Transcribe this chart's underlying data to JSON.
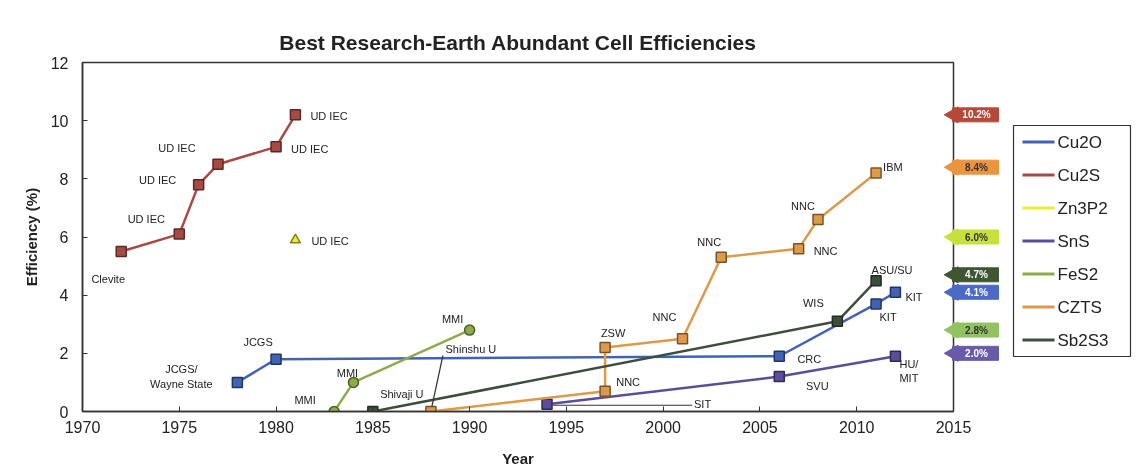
{
  "chart_data": {
    "type": "line",
    "title": "Best Research-Earth Abundant Cell Efficiencies",
    "xlabel": "Year",
    "ylabel": "Efficiency (%)",
    "xlim": [
      1970,
      2015
    ],
    "ylim": [
      0,
      12
    ],
    "xticks": [
      1970,
      1975,
      1980,
      1985,
      1990,
      1995,
      2000,
      2005,
      2010,
      2015
    ],
    "yticks": [
      0,
      2,
      4,
      6,
      8,
      10,
      12
    ],
    "grid": false,
    "legend": "right",
    "line_style": "solid",
    "series": [
      {
        "name": "Cu2O",
        "color": "#4262b4",
        "marker": "square",
        "x": [
          1978,
          1980,
          2006,
          2011,
          2012
        ],
        "values": [
          1.0,
          1.8,
          1.9,
          3.7,
          4.1
        ]
      },
      {
        "name": "Cu2S",
        "color": "#a84a44",
        "marker": "square",
        "x": [
          1972,
          1975,
          1976,
          1977,
          1980,
          1981
        ],
        "values": [
          5.5,
          6.1,
          7.8,
          8.5,
          9.1,
          10.2
        ]
      },
      {
        "name": "Zn3P2",
        "color": "#ecec30",
        "marker": "triangle",
        "x": [
          1981
        ],
        "values": [
          5.9
        ]
      },
      {
        "name": "SnS",
        "color": "#5c4c9c",
        "marker": "square",
        "x": [
          1994,
          2006,
          2012
        ],
        "values": [
          0.25,
          1.2,
          1.9
        ]
      },
      {
        "name": "FeS2",
        "color": "#8cac4c",
        "marker": "circle",
        "x": [
          1983,
          1984,
          1990
        ],
        "values": [
          0,
          1.0,
          2.8
        ]
      },
      {
        "name": "CZTS",
        "color": "#dc9a4a",
        "marker": "square",
        "x": [
          1988,
          1997,
          1997,
          2001,
          2003,
          2007,
          2008,
          2011
        ],
        "values": [
          0,
          0.7,
          2.2,
          2.5,
          5.3,
          5.6,
          6.6,
          8.2
        ]
      },
      {
        "name": "Sb2S3",
        "color": "#3e4e3e",
        "marker": "square",
        "x": [
          1985,
          2009,
          2011
        ],
        "values": [
          0,
          3.1,
          4.5
        ]
      },
      {
        "type": "scatter",
        "marker": "triangle",
        "x": [
          2015,
          2015,
          2015,
          2015,
          2015,
          2015,
          2015
        ],
        "values": [
          10.2,
          8.4,
          6.0,
          4.7,
          4.1,
          2.8,
          2.0
        ],
        "colors": [
          "#b44a3a",
          "#ea9440",
          "#c8e03c",
          "#3e5632",
          "#4a6ac4",
          "#92c262",
          "#6a5aaa"
        ],
        "value_labels": [
          "10.2%",
          "8.4%",
          "6.0%",
          "4.7%",
          "4.1%",
          "2.8%",
          "2.0%"
        ]
      }
    ],
    "annotations": [
      {
        "text": "Clevite",
        "x": 1972,
        "y": 5.5
      },
      {
        "text": "UD IEC",
        "x": 1975,
        "y": 6.1
      },
      {
        "text": "UD IEC",
        "x": 1976,
        "y": 7.8
      },
      {
        "text": "UD IEC",
        "x": 1977,
        "y": 8.5
      },
      {
        "text": "UD IEC",
        "x": 1980,
        "y": 9.1
      },
      {
        "text": "UD IEC",
        "x": 1981,
        "y": 10.2
      },
      {
        "text": "UD IEC",
        "x": 1981,
        "y": 5.9
      },
      {
        "text": "JCGS/\nWayne State",
        "x": 1978,
        "y": 1.0
      },
      {
        "text": "JCGS",
        "x": 1980,
        "y": 1.8
      },
      {
        "text": "MMI",
        "x": 1983,
        "y": 0
      },
      {
        "text": "MMI",
        "x": 1984,
        "y": 1.0
      },
      {
        "text": "MMI",
        "x": 1990,
        "y": 2.8
      },
      {
        "text": "Shivaji U",
        "x": 1985,
        "y": 0
      },
      {
        "text": "Shinshu U",
        "x": 1988,
        "y": 0
      },
      {
        "text": "ZSW",
        "x": 1997,
        "y": 2.2
      },
      {
        "text": "NNC",
        "x": 1997,
        "y": 0.7
      },
      {
        "text": "NNC",
        "x": 2001,
        "y": 2.5
      },
      {
        "text": "NNC",
        "x": 2003,
        "y": 5.3
      },
      {
        "text": "NNC",
        "x": 2007,
        "y": 5.6
      },
      {
        "text": "NNC",
        "x": 2008,
        "y": 6.6
      },
      {
        "text": "IBM",
        "x": 2011,
        "y": 8.2
      },
      {
        "text": "SIT",
        "x": 1994,
        "y": 0.25
      },
      {
        "text": "SVU",
        "x": 2006,
        "y": 1.2
      },
      {
        "text": "CRC",
        "x": 2006,
        "y": 1.9
      },
      {
        "text": "WIS",
        "x": 2009,
        "y": 3.1
      },
      {
        "text": "ASU/SU",
        "x": 2011,
        "y": 4.5
      },
      {
        "text": "KIT",
        "x": 2011,
        "y": 3.7
      },
      {
        "text": "KIT",
        "x": 2012,
        "y": 4.1
      },
      {
        "text": "HU/\nMIT",
        "x": 2012,
        "y": 1.9
      }
    ]
  }
}
